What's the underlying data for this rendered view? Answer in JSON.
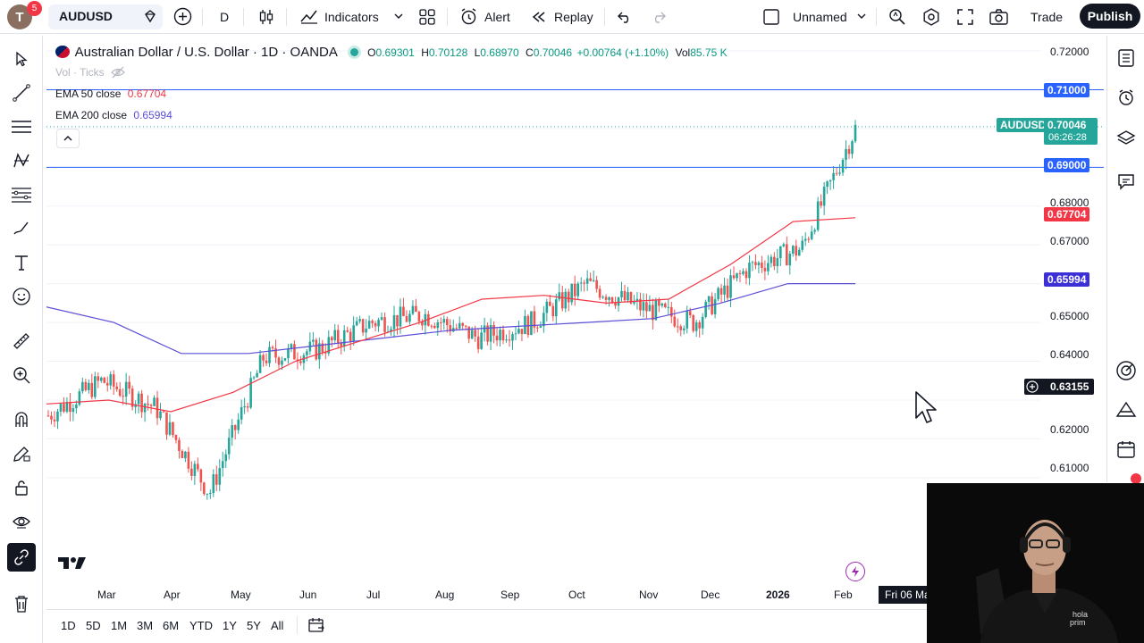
{
  "topbar": {
    "avatar_letter": "T",
    "avatar_badge": "5",
    "symbol": "AUDUSD",
    "interval": "D",
    "indicators_label": "Indicators",
    "alert_label": "Alert",
    "replay_label": "Replay",
    "layout_name": "Unnamed",
    "trade_label": "Trade",
    "publish_label": "Publish"
  },
  "legend": {
    "title": "Australian Dollar / U.S. Dollar · 1D · OANDA",
    "o_label": "O",
    "o_val": "0.69301",
    "h_label": "H",
    "h_val": "0.70128",
    "l_label": "L",
    "l_val": "0.68970",
    "c_label": "C",
    "c_val": "0.70046",
    "change": "+0.00764 (+1.10%)",
    "vol_label": "Vol",
    "vol_val": "85.75 K",
    "vol_ticks": "Vol · Ticks",
    "ema50_label": "EMA 50 close",
    "ema50_val": "0.67704",
    "ema200_label": "EMA 200 close",
    "ema200_val": "0.65994"
  },
  "price_axis": [
    "0.72000",
    "0.68000",
    "0.67000",
    "0.65000",
    "0.64000",
    "0.62000",
    "0.61000"
  ],
  "tags": {
    "line_upper": "0.71000",
    "line_lower": "0.69000",
    "symbol_tag": "AUDUSD",
    "last_price": "0.70046",
    "countdown": "06:26:28",
    "ema50": "0.67704",
    "ema200": "0.65994",
    "cursor_price": "0.63155"
  },
  "time_axis": {
    "labels": [
      "Mar",
      "Apr",
      "May",
      "Jun",
      "Jul",
      "Aug",
      "Sep",
      "Oct",
      "Nov",
      "Dec",
      "2026",
      "Feb"
    ],
    "cursor_date": "Fri 06 Ma"
  },
  "ranges": [
    "1D",
    "5D",
    "1M",
    "3M",
    "6M",
    "YTD",
    "1Y",
    "5Y",
    "All"
  ],
  "colors": {
    "up": "#26a69a",
    "down": "#ef5350",
    "ema50": "#f23645",
    "ema200": "#5b4dd6",
    "hline": "#2962ff",
    "publish": "#131722"
  },
  "chart_data": {
    "type": "candlestick",
    "symbol": "AUDUSD",
    "interval": "1D",
    "ylim": [
      0.595,
      0.722
    ],
    "x": [
      "Feb",
      "Mar",
      "Apr",
      "May",
      "Jun",
      "Jul",
      "Aug",
      "Sep",
      "Oct",
      "Nov",
      "Dec",
      "2026",
      "Feb"
    ],
    "close_path": [
      0.626,
      0.635,
      0.628,
      0.606,
      0.641,
      0.643,
      0.65,
      0.652,
      0.646,
      0.65,
      0.66,
      0.654,
      0.65,
      0.664,
      0.669,
      0.7
    ],
    "ema50": [
      0.629,
      0.63,
      0.627,
      0.632,
      0.64,
      0.645,
      0.65,
      0.656,
      0.657,
      0.655,
      0.656,
      0.665,
      0.676,
      0.677
    ],
    "ema200": [
      0.654,
      0.65,
      0.642,
      0.642,
      0.644,
      0.646,
      0.648,
      0.649,
      0.65,
      0.651,
      0.655,
      0.66,
      0.66
    ],
    "hlines": [
      0.71,
      0.69
    ],
    "last_close": 0.70046
  }
}
